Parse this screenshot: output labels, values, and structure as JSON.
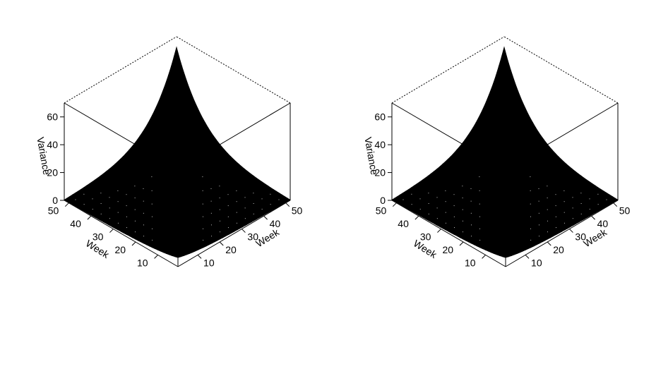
{
  "chart_data": [
    {
      "type": "surface3d",
      "panel": "left",
      "zlabel": "Variance",
      "xlabel": "Week",
      "ylabel": "Week",
      "x_ticks": [
        10,
        20,
        30,
        40,
        50
      ],
      "y_ticks": [
        10,
        20,
        30,
        40,
        50
      ],
      "z_ticks": [
        0,
        20,
        40,
        60
      ],
      "x_range": [
        1,
        52
      ],
      "y_range": [
        1,
        52
      ],
      "z_range": [
        0,
        70
      ],
      "peak_value": 60,
      "corner_value": 5,
      "edge_value": 0,
      "grid": false
    },
    {
      "type": "surface3d",
      "panel": "right",
      "zlabel": "Variance",
      "xlabel": "Week",
      "ylabel": "Week",
      "x_ticks": [
        10,
        20,
        30,
        40,
        50
      ],
      "y_ticks": [
        10,
        20,
        30,
        40,
        50
      ],
      "z_ticks": [
        0,
        20,
        40,
        60
      ],
      "x_range": [
        1,
        52
      ],
      "y_range": [
        1,
        52
      ],
      "z_range": [
        0,
        70
      ],
      "peak_value": 60,
      "corner_value": 5,
      "edge_value": 0,
      "grid": false
    }
  ],
  "colors": {
    "surface": "#000000",
    "background": "#ffffff",
    "mesh_gap": "#ffffff"
  }
}
